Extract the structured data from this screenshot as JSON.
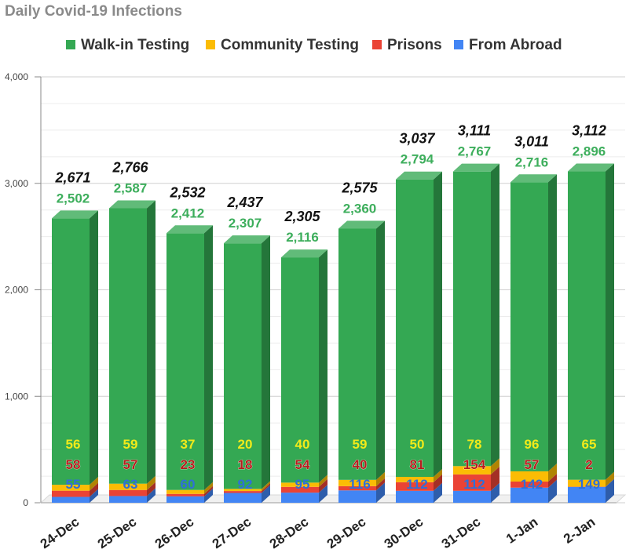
{
  "chart_data": {
    "type": "bar",
    "stacked": true,
    "title": "Daily Covid-19 Infections",
    "xlabel": "",
    "ylabel": "",
    "ylim": [
      0,
      4000
    ],
    "yticks": [
      0,
      1000,
      2000,
      3000,
      4000
    ],
    "ytick_labels": [
      "0",
      "1,000",
      "2,000",
      "3,000",
      "4,000"
    ],
    "grid": true,
    "legend": "top",
    "categories": [
      "24-Dec",
      "25-Dec",
      "26-Dec",
      "27-Dec",
      "28-Dec",
      "29-Dec",
      "30-Dec",
      "31-Dec",
      "1-Jan",
      "2-Jan"
    ],
    "series": [
      {
        "name": "From Abroad",
        "color": "#4285f4",
        "values": [
          55,
          63,
          60,
          92,
          95,
          116,
          112,
          112,
          142,
          149
        ],
        "labels": [
          "55",
          "63",
          "60",
          "92",
          "95",
          "116",
          "112",
          "112",
          "142",
          "149"
        ]
      },
      {
        "name": "Prisons",
        "color": "#ea4335",
        "values": [
          58,
          57,
          23,
          18,
          54,
          40,
          81,
          154,
          57,
          2
        ],
        "labels": [
          "58",
          "57",
          "23",
          "18",
          "54",
          "40",
          "81",
          "154",
          "57",
          "2"
        ]
      },
      {
        "name": "Community Testing",
        "color": "#fbbc04",
        "values": [
          56,
          59,
          37,
          20,
          40,
          59,
          50,
          78,
          96,
          65
        ],
        "labels": [
          "56",
          "59",
          "37",
          "20",
          "40",
          "59",
          "50",
          "78",
          "96",
          "65"
        ]
      },
      {
        "name": "Walk-in Testing",
        "color": "#34a853",
        "values": [
          2502,
          2587,
          2412,
          2307,
          2116,
          2360,
          2794,
          2767,
          2716,
          2896
        ],
        "labels": [
          "2,502",
          "2,587",
          "2,412",
          "2,307",
          "2,116",
          "2,360",
          "2,794",
          "2,767",
          "2,716",
          "2,896"
        ]
      }
    ],
    "totals": [
      2671,
      2766,
      2532,
      2437,
      2305,
      2575,
      3037,
      3111,
      3011,
      3112
    ],
    "total_labels": [
      "2,671",
      "2,766",
      "2,532",
      "2,437",
      "2,305",
      "2,575",
      "3,037",
      "3,111",
      "3,011",
      "3,112"
    ],
    "legend_order": [
      "Walk-in Testing",
      "Community Testing",
      "Prisons",
      "From Abroad"
    ],
    "label_colors": {
      "Walk-in Testing": "#3dae5c",
      "Community Testing": "#f1ea1a",
      "Prisons": "#b71c1c",
      "From Abroad": "#2f6fd8"
    }
  }
}
